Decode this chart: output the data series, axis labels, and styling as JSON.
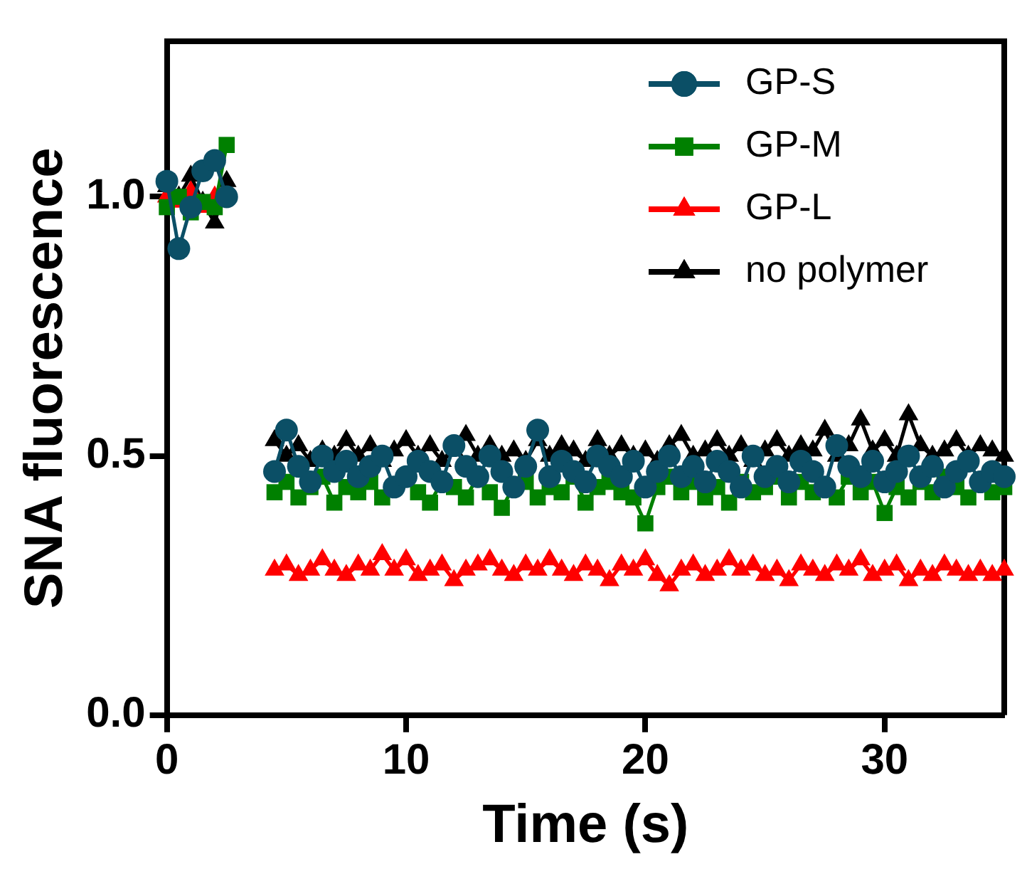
{
  "chart_data": {
    "type": "line",
    "xlabel": "Time (s)",
    "ylabel": "SNA fluorescence",
    "x": [
      0,
      0.5,
      1,
      1.5,
      2,
      2.5,
      3.5,
      4.5,
      5,
      5.5,
      6,
      6.5,
      7,
      7.5,
      8,
      8.5,
      9,
      9.5,
      10,
      10.5,
      11,
      11.5,
      12,
      12.5,
      13,
      13.5,
      14,
      14.5,
      15,
      15.5,
      16,
      16.5,
      17,
      17.5,
      18,
      18.5,
      19,
      19.5,
      20,
      20.5,
      21,
      21.5,
      22,
      22.5,
      23,
      23.5,
      24,
      24.5,
      25,
      25.5,
      26,
      26.5,
      27,
      27.5,
      28,
      28.5,
      29,
      29.5,
      30,
      30.5,
      31,
      31.5,
      32,
      32.5,
      33,
      33.5,
      34,
      34.5,
      35
    ],
    "series": [
      {
        "name": "GP-S",
        "color": "#0b4f66",
        "marker": "circle",
        "values": [
          1.03,
          0.9,
          0.98,
          1.05,
          1.07,
          1.0,
          null,
          0.47,
          0.55,
          0.48,
          0.45,
          0.5,
          0.47,
          0.49,
          0.46,
          0.48,
          0.5,
          0.44,
          0.46,
          0.49,
          0.47,
          0.45,
          0.52,
          0.48,
          0.46,
          0.5,
          0.47,
          0.44,
          0.48,
          0.55,
          0.46,
          0.49,
          0.47,
          0.45,
          0.5,
          0.48,
          0.46,
          0.49,
          0.44,
          0.47,
          0.5,
          0.46,
          0.48,
          0.45,
          0.49,
          0.47,
          0.44,
          0.5,
          0.46,
          0.48,
          0.45,
          0.49,
          0.47,
          0.44,
          0.52,
          0.48,
          0.46,
          0.49,
          0.45,
          0.47,
          0.5,
          0.46,
          0.48,
          0.44,
          0.47,
          0.49,
          0.45,
          0.47,
          0.46
        ]
      },
      {
        "name": "GP-M",
        "color": "#008000",
        "marker": "square",
        "values": [
          0.98,
          1.0,
          0.97,
          0.99,
          0.98,
          1.1,
          null,
          0.43,
          0.45,
          0.42,
          0.44,
          0.46,
          0.41,
          0.44,
          0.43,
          0.45,
          0.42,
          0.44,
          0.46,
          0.43,
          0.41,
          0.45,
          0.44,
          0.42,
          0.46,
          0.43,
          0.4,
          0.44,
          0.45,
          0.42,
          0.44,
          0.43,
          0.46,
          0.41,
          0.44,
          0.45,
          0.43,
          0.42,
          0.37,
          0.44,
          0.46,
          0.43,
          0.45,
          0.42,
          0.44,
          0.41,
          0.45,
          0.43,
          0.44,
          0.46,
          0.42,
          0.45,
          0.43,
          0.44,
          0.42,
          0.46,
          0.43,
          0.45,
          0.39,
          0.44,
          0.42,
          0.45,
          0.43,
          0.46,
          0.44,
          0.42,
          0.45,
          0.43,
          0.44
        ]
      },
      {
        "name": "GP-L",
        "color": "#ff0000",
        "marker": "triangle",
        "values": [
          1.0,
          0.99,
          1.01,
          0.98,
          1.0,
          null,
          null,
          0.28,
          0.29,
          0.27,
          0.28,
          0.3,
          0.28,
          0.27,
          0.29,
          0.28,
          0.31,
          0.28,
          0.3,
          0.27,
          0.28,
          0.29,
          0.26,
          0.28,
          0.29,
          0.3,
          0.28,
          0.27,
          0.29,
          0.28,
          0.3,
          0.28,
          0.27,
          0.29,
          0.28,
          0.26,
          0.29,
          0.28,
          0.3,
          0.27,
          0.25,
          0.28,
          0.29,
          0.27,
          0.28,
          0.3,
          0.28,
          0.29,
          0.27,
          0.28,
          0.26,
          0.29,
          0.28,
          0.27,
          0.29,
          0.28,
          0.3,
          0.27,
          0.28,
          0.29,
          0.26,
          0.28,
          0.27,
          0.29,
          0.28,
          0.27,
          0.28,
          0.27,
          0.28
        ]
      },
      {
        "name": "no polymer",
        "color": "#000000",
        "marker": "triangle",
        "values": [
          1.02,
          1.0,
          1.04,
          0.99,
          0.95,
          1.03,
          null,
          0.53,
          0.5,
          0.52,
          0.49,
          0.51,
          0.5,
          0.53,
          0.5,
          0.52,
          0.49,
          0.51,
          0.53,
          0.5,
          0.52,
          0.49,
          0.51,
          0.54,
          0.5,
          0.52,
          0.5,
          0.51,
          0.49,
          0.53,
          0.5,
          0.52,
          0.51,
          0.49,
          0.53,
          0.5,
          0.52,
          0.5,
          0.51,
          0.49,
          0.52,
          0.54,
          0.5,
          0.51,
          0.53,
          0.5,
          0.52,
          0.49,
          0.51,
          0.53,
          0.5,
          0.52,
          0.51,
          0.55,
          0.5,
          0.52,
          0.57,
          0.51,
          0.53,
          0.5,
          0.58,
          0.52,
          0.5,
          0.51,
          0.53,
          0.5,
          0.52,
          0.51,
          0.5
        ]
      }
    ],
    "xlim": [
      0,
      35
    ],
    "xticks": [
      0,
      10,
      20,
      30
    ],
    "ylim": [
      0,
      1.3
    ],
    "yticks": [
      {
        "value": 0,
        "label": "0.0"
      },
      0.5,
      {
        "value": 1,
        "label": "1.0"
      }
    ],
    "grid": false,
    "legend": "top right",
    "line_style": "solid"
  }
}
